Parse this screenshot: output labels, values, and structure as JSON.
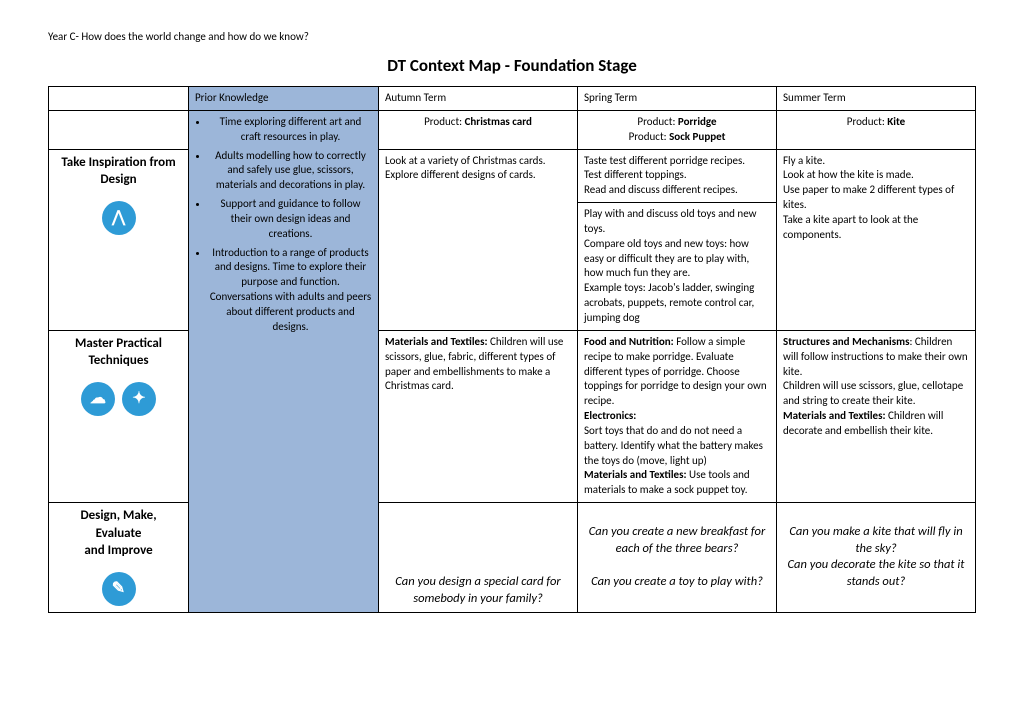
{
  "header": "Year C- How does the world change and how do we know?",
  "title": "DT Context Map - Foundation Stage",
  "columns": {
    "prior": "Prior Knowledge",
    "autumn": "Autumn Term",
    "spring": "Spring Term",
    "summer": "Summer Term"
  },
  "products": {
    "autumn_label": "Product:",
    "autumn_name": "Christmas card",
    "spring_label1": "Product:",
    "spring_name1": "Porridge",
    "spring_label2": "Product:",
    "spring_name2": "Sock Puppet",
    "summer_label": "Product:",
    "summer_name": "Kite"
  },
  "rows": {
    "inspiration": {
      "label": "Take Inspiration from Design",
      "icon": "⋀"
    },
    "techniques": {
      "label": "Master Practical Techniques",
      "icon1": "☁",
      "icon2": "✦"
    },
    "design": {
      "label_l1": "Design, Make,",
      "label_l2": "Evaluate",
      "label_l3": "and Improve",
      "icon": "✎"
    }
  },
  "prior_bullets": [
    "Time exploring different art and craft resources in play.",
    "Adults modelling how to correctly and safely use glue, scissors, materials and decorations in play.",
    "Support and guidance to follow their own design ideas and creations.",
    "Introduction to a range of products and designs. Time to explore their purpose and function. Conversations with adults and peers about different products and designs."
  ],
  "inspiration": {
    "autumn": "Look at a variety of Christmas cards. Explore different designs of cards.",
    "spring_a": "Taste test different porridge recipes.\nTest different toppings.\nRead and discuss different recipes.",
    "spring_b": "Play with and discuss old toys and new toys.\nCompare old toys and new toys: how easy or difficult they are to play with, how much fun they are.\nExample toys: Jacob's ladder, swinging acrobats, puppets, remote control car, jumping dog",
    "summer": "Fly a kite.\nLook at how the kite is made.\nUse paper to make 2 different types of kites.\nTake a kite apart to look at the components."
  },
  "techniques": {
    "autumn_b": "Materials and Textiles:",
    "autumn_t": " Children will use scissors, glue, fabric, different types of paper and embellishments to make a Christmas card.",
    "spring_b1": "Food and Nutrition:",
    "spring_t1": " Follow a simple recipe to make porridge. Evaluate different types of porridge. Choose toppings for porridge to design your own recipe.",
    "spring_b2": "Electronics:",
    "spring_t2": "\nSort toys that do and do not need a battery. Identify what the battery makes the toys do (move, light up)",
    "spring_b3": "Materials and Textiles:",
    "spring_t3": " Use tools and materials to make a sock puppet toy.",
    "summer_b1": "Structures and Mechanisms",
    "summer_t1": ": Children will follow instructions to make their own kite.\nChildren will use scissors, glue, cellotape and string to create their kite.",
    "summer_b2": "Materials and Textiles:",
    "summer_t2": " Children will decorate and embellish their kite."
  },
  "design": {
    "autumn": "Can you design a special card for somebody in your family?",
    "spring_a": "Can you create a new breakfast for each of the three bears?",
    "spring_b": "Can you create a toy to play with?",
    "summer_a": "Can you make a kite that will fly in the sky?",
    "summer_b": "Can you decorate the kite so that it stands out?"
  }
}
